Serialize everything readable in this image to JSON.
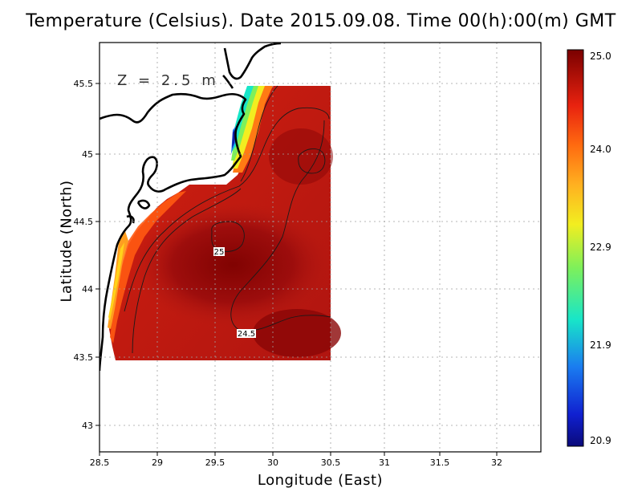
{
  "map": {
    "title": "Temperature (Celsius). Date 2015.09.08. Time 00(h):00(m) GMT",
    "xlabel": "Longitude (East)",
    "ylabel": "Latitude (North)",
    "depth_label": "Z = 2.5 m"
  },
  "chart_data": {
    "type": "heatmap",
    "title": "Temperature (Celsius). Date 2015.09.08. Time 00(h):00(m) GMT",
    "xlabel": "Longitude (East)",
    "ylabel": "Latitude (North)",
    "xlim": [
      28.5,
      32.4
    ],
    "ylim": [
      42.8,
      45.8
    ],
    "x_ticks": [
      "28.5",
      "29",
      "29.5",
      "30",
      "30.5",
      "31",
      "31.5",
      "32"
    ],
    "y_ticks": [
      "43",
      "43.5",
      "44",
      "44.5",
      "45",
      "45.5"
    ],
    "grid": true,
    "colorbar": {
      "ticks": [
        "25.0",
        "24.0",
        "22.9",
        "21.9",
        "20.9"
      ],
      "range": [
        20.9,
        25.0
      ]
    },
    "contour_labels": [
      {
        "text": "25",
        "lon": 29.52,
        "lat": 44.27
      },
      {
        "text": "24.5",
        "lon": 29.83,
        "lat": 43.68
      }
    ],
    "data_extent": {
      "lon": [
        28.62,
        30.53
      ],
      "lat": [
        43.48,
        45.5
      ]
    },
    "colors": {
      "max": "#7a0000",
      "high": "#e8220f",
      "mid": "#ffd21a",
      "low": "#18e6c8",
      "min": "#0a0a7a"
    }
  }
}
